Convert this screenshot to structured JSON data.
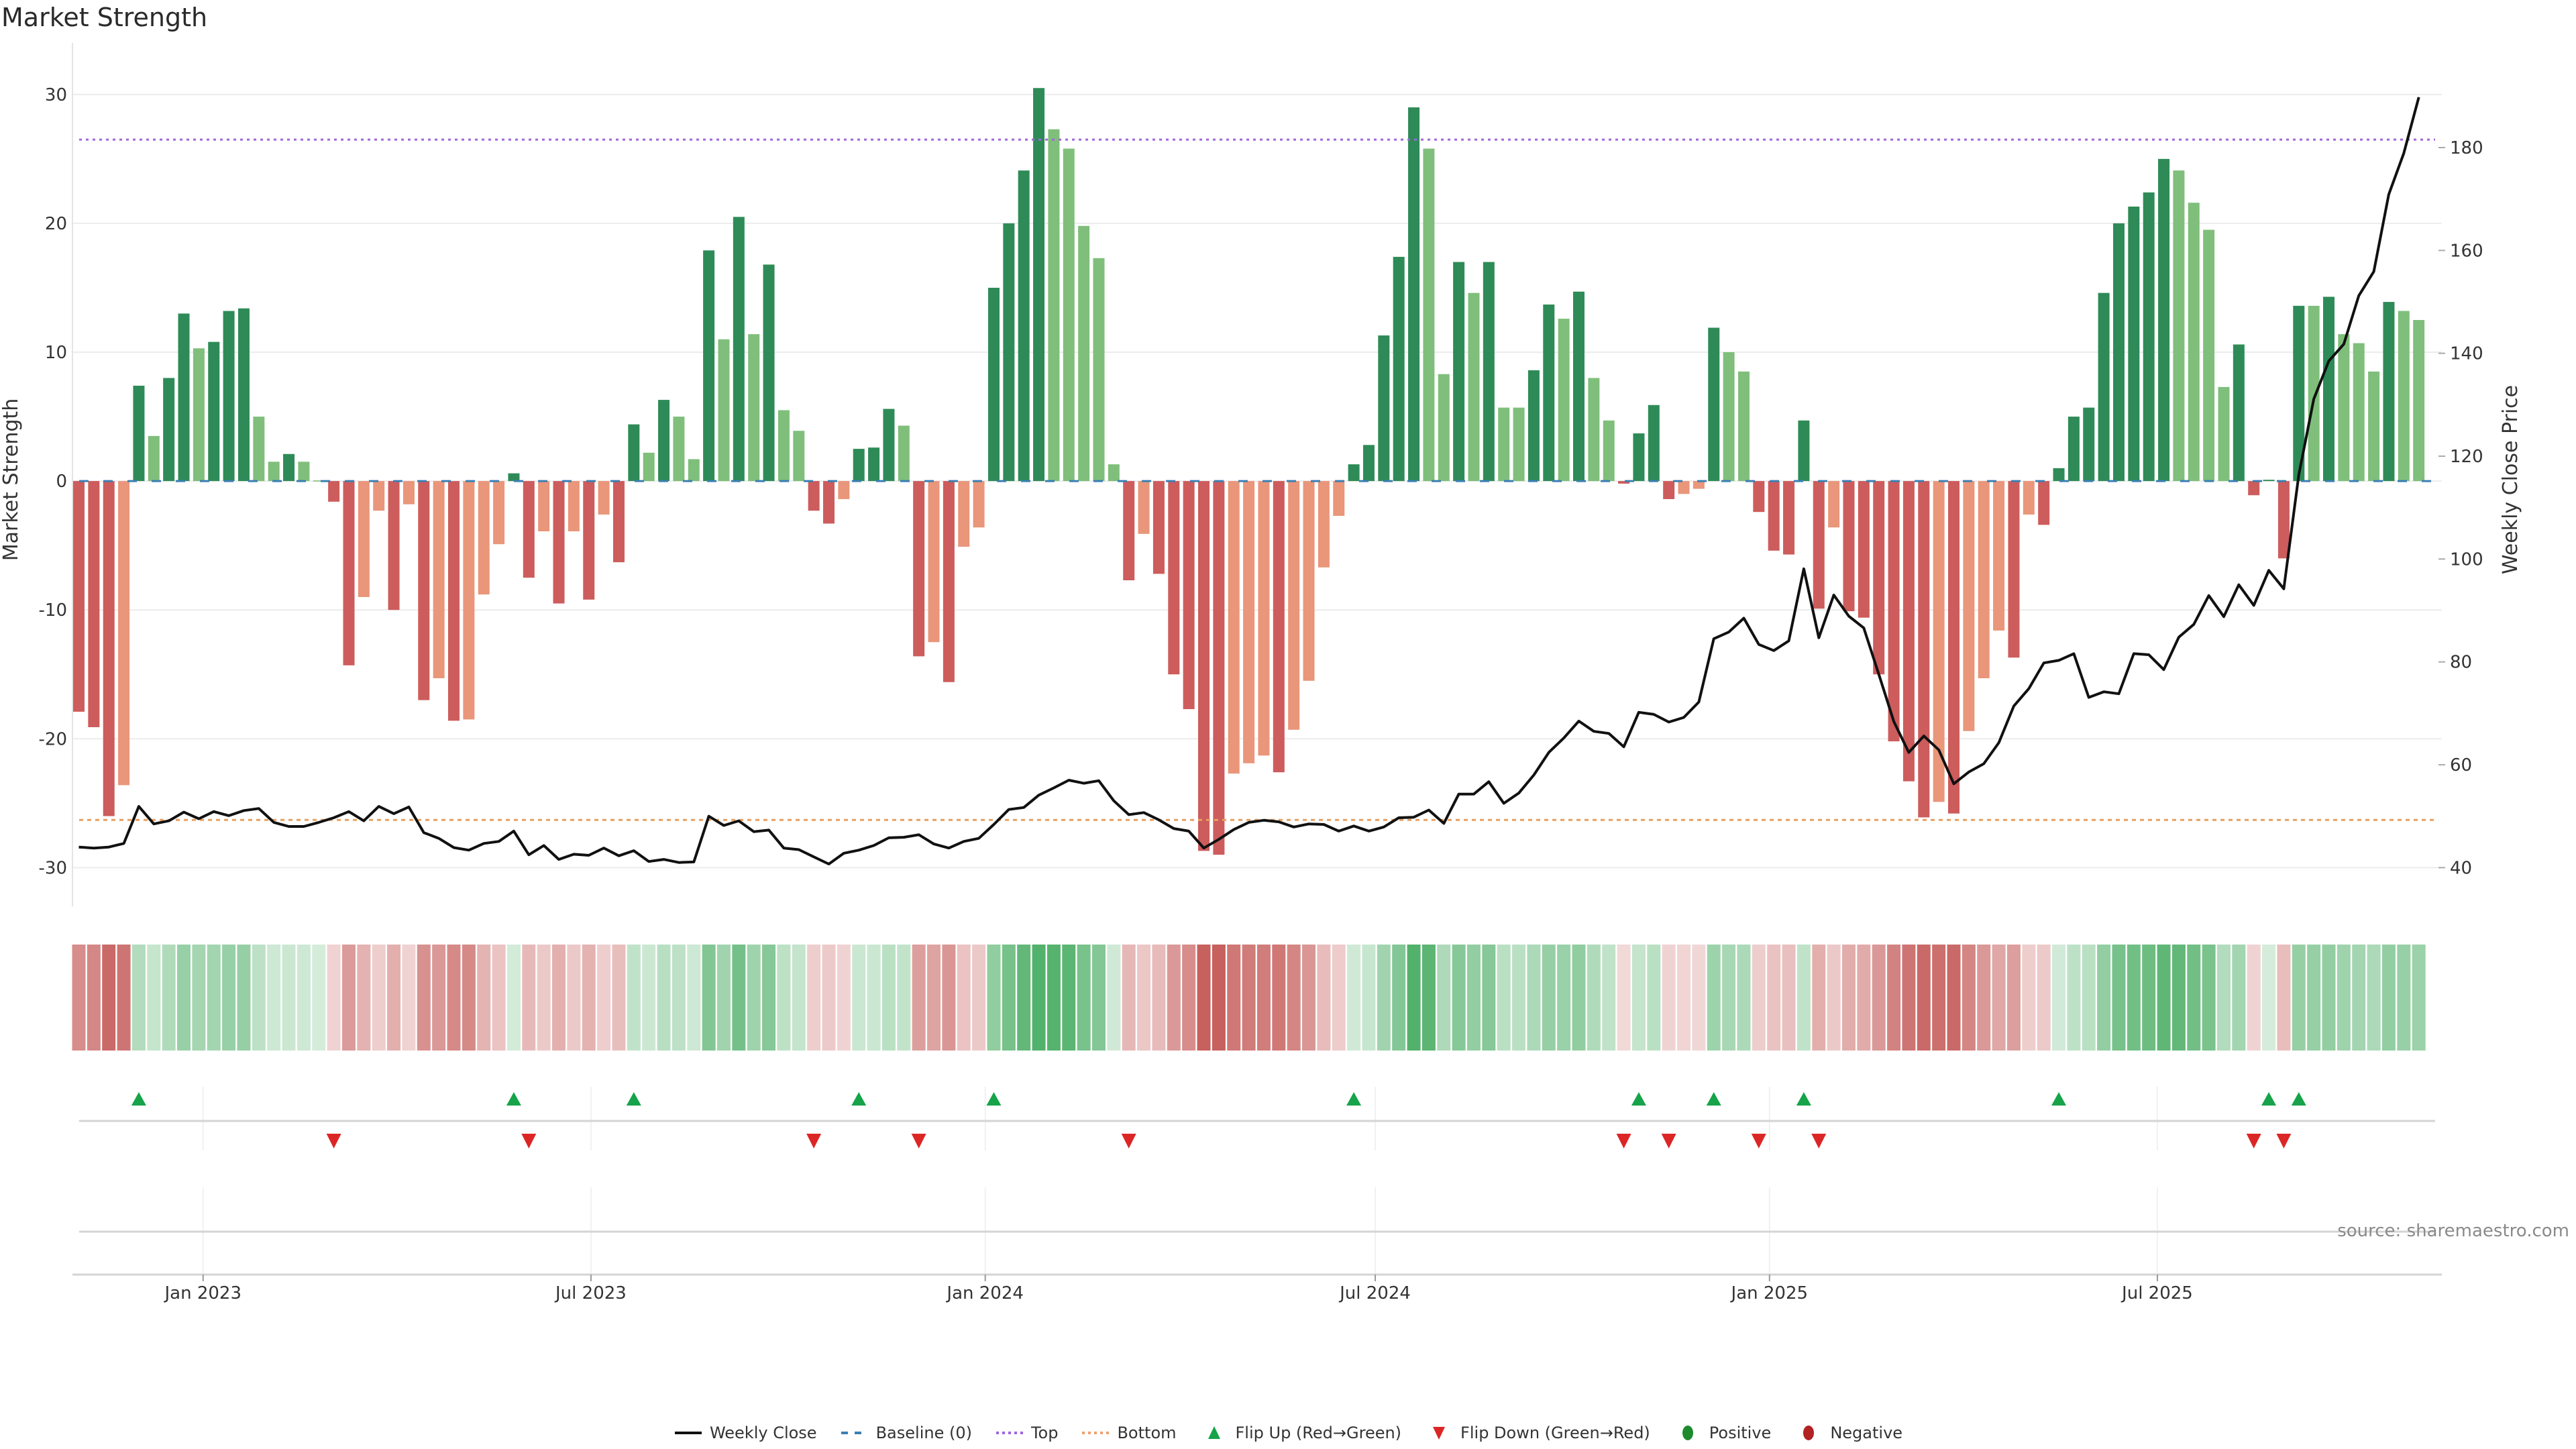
{
  "title": "Market Strength",
  "source": "source: sharemaestro.com",
  "legend": [
    {
      "label": "Weekly Close",
      "kind": "line",
      "color": "#111111"
    },
    {
      "label": "Baseline (0)",
      "kind": "dash",
      "color": "#3b7fb4"
    },
    {
      "label": "Top",
      "kind": "dot",
      "color": "#a066dd"
    },
    {
      "label": "Bottom",
      "kind": "dot",
      "color": "#f0a070"
    },
    {
      "label": "Flip Up (Red→Green)",
      "kind": "up",
      "color": "#16a34a"
    },
    {
      "label": "Flip Down (Green→Red)",
      "kind": "down",
      "color": "#dc2626"
    },
    {
      "label": "Positive",
      "kind": "circle",
      "color": "#1e8a2e"
    },
    {
      "label": "Negative",
      "kind": "circle",
      "color": "#b22222"
    }
  ],
  "colors": {
    "pos_strong": "#2e8b57",
    "pos_weak": "#7fbf7b",
    "neg_strong": "#cd5c5c",
    "neg_weak": "#e9967a",
    "heat_pos": "#3fa85a",
    "heat_neg": "#c0504d",
    "top": "#a066dd",
    "bottom": "#e8a060",
    "baseline": "#3b7fb4",
    "price": "#111111",
    "flip_up": "#16a34a",
    "flip_down": "#dc2626"
  },
  "chart_data": {
    "type": "bar",
    "title": "Market Strength",
    "ylabel": "Market Strength",
    "y2label": "Weekly Close Price",
    "start_date": "2022-11-04",
    "frequency": "weekly",
    "ylim": [
      -33,
      34
    ],
    "y2lim": [
      38,
      196
    ],
    "yticks": [
      -30,
      -20,
      -10,
      0,
      10,
      20,
      30
    ],
    "y2ticks": [
      40,
      60,
      80,
      100,
      120,
      140,
      160,
      180
    ],
    "xticks": [
      {
        "date": "2023-01-01",
        "label": "Jan 2023"
      },
      {
        "date": "2023-07-01",
        "label": "Jul 2023"
      },
      {
        "date": "2024-01-01",
        "label": "Jan 2024"
      },
      {
        "date": "2024-07-01",
        "label": "Jul 2024"
      },
      {
        "date": "2025-01-01",
        "label": "Jan 2025"
      },
      {
        "date": "2025-07-01",
        "label": "Jul 2025"
      }
    ],
    "top_level": 26.5,
    "bottom_level": -26.3,
    "strength": [
      -17.9,
      -19.1,
      -26.0,
      -23.6,
      7.4,
      3.5,
      8.0,
      13.0,
      10.3,
      10.8,
      13.2,
      13.4,
      5.0,
      1.5,
      2.1,
      1.5,
      0.05,
      -1.6,
      -14.3,
      -9.0,
      -2.3,
      -10.0,
      -1.8,
      -17.0,
      -15.3,
      -18.6,
      -18.5,
      -8.8,
      -4.9,
      0.6,
      -7.5,
      -3.9,
      -9.5,
      -3.9,
      -9.2,
      -2.6,
      -6.3,
      4.4,
      2.2,
      6.3,
      5.0,
      1.7,
      17.9,
      11.0,
      20.5,
      11.4,
      16.8,
      5.5,
      3.9,
      -2.3,
      -3.3,
      -1.4,
      2.5,
      2.6,
      5.6,
      4.3,
      -13.6,
      -12.5,
      -15.6,
      -5.1,
      -3.6,
      15.0,
      20.0,
      24.1,
      30.5,
      27.3,
      25.8,
      19.8,
      17.3,
      1.3,
      -7.7,
      -4.1,
      -7.2,
      -15.0,
      -17.7,
      -28.7,
      -29.0,
      -22.7,
      -21.9,
      -21.3,
      -22.6,
      -19.3,
      -15.5,
      -6.7,
      -2.7,
      1.3,
      2.8,
      11.3,
      17.4,
      29.0,
      25.8,
      8.3,
      17.0,
      14.6,
      17.0,
      5.7,
      5.7,
      8.6,
      13.7,
      12.6,
      14.7,
      8.0,
      4.7,
      -0.2,
      3.7,
      5.9,
      -1.4,
      -1.0,
      -0.6,
      11.9,
      10.0,
      8.5,
      -2.4,
      -5.4,
      -5.7,
      4.7,
      -9.9,
      -3.6,
      -10.1,
      -10.6,
      -15.0,
      -20.2,
      -23.3,
      -26.1,
      -24.9,
      -25.8,
      -19.4,
      -15.3,
      -11.6,
      -13.7,
      -2.6,
      -3.4,
      1.0,
      5.0,
      5.7,
      14.6,
      20.0,
      21.3,
      22.4,
      25.0,
      24.1,
      21.6,
      19.5,
      7.3,
      10.6,
      -1.1,
      0.1,
      -6.0,
      13.6,
      13.6,
      14.3,
      11.4,
      10.7,
      8.5,
      13.9,
      13.2,
      12.5
    ],
    "weekly_close": [
      44.0,
      43.8,
      44.0,
      44.7,
      51.9,
      48.5,
      49.1,
      50.8,
      49.5,
      50.9,
      50.1,
      51.1,
      51.5,
      48.8,
      48.0,
      48.0,
      48.8,
      49.7,
      50.9,
      49.1,
      51.9,
      50.5,
      51.8,
      46.8,
      45.7,
      43.9,
      43.4,
      44.7,
      45.1,
      47.1,
      42.5,
      44.3,
      41.6,
      42.6,
      42.4,
      43.8,
      42.3,
      43.3,
      41.2,
      41.6,
      41.0,
      41.1,
      50.0,
      48.2,
      49.1,
      47.0,
      47.3,
      43.8,
      43.5,
      42.1,
      40.7,
      42.8,
      43.4,
      44.3,
      45.8,
      45.9,
      46.4,
      44.6,
      43.8,
      45.1,
      45.7,
      48.4,
      51.3,
      51.7,
      54.1,
      55.5,
      57.0,
      56.4,
      56.9,
      53.0,
      50.3,
      50.7,
      49.3,
      47.6,
      47.1,
      43.8,
      45.5,
      47.4,
      48.8,
      49.2,
      48.9,
      47.9,
      48.5,
      48.4,
      47.1,
      48.1,
      47.1,
      47.9,
      49.7,
      49.8,
      51.2,
      48.6,
      54.3,
      54.3,
      56.7,
      52.5,
      54.5,
      58.0,
      62.4,
      65.2,
      68.5,
      66.5,
      66.1,
      63.5,
      70.2,
      69.8,
      68.3,
      69.2,
      72.2,
      84.5,
      85.8,
      88.5,
      83.4,
      82.2,
      84.1,
      98.1,
      84.7,
      93.0,
      88.9,
      86.6,
      77.6,
      68.4,
      62.4,
      65.6,
      62.9,
      56.3,
      58.6,
      60.2,
      64.3,
      71.4,
      74.8,
      79.8,
      80.3,
      81.6,
      73.1,
      74.2,
      73.8,
      81.6,
      81.4,
      78.5,
      84.8,
      87.3,
      92.9,
      88.8,
      95.0,
      91.0,
      97.8,
      94.2,
      116.4,
      131.1,
      138.5,
      141.8,
      151.2,
      155.9,
      170.9,
      178.9,
      189.8
    ],
    "flip_up_weeks": [
      5,
      30,
      38,
      53,
      62,
      86,
      105,
      110,
      116,
      133,
      147,
      149
    ],
    "flip_down_weeks": [
      18,
      31,
      50,
      57,
      71,
      104,
      107,
      113,
      117,
      146,
      148
    ]
  }
}
